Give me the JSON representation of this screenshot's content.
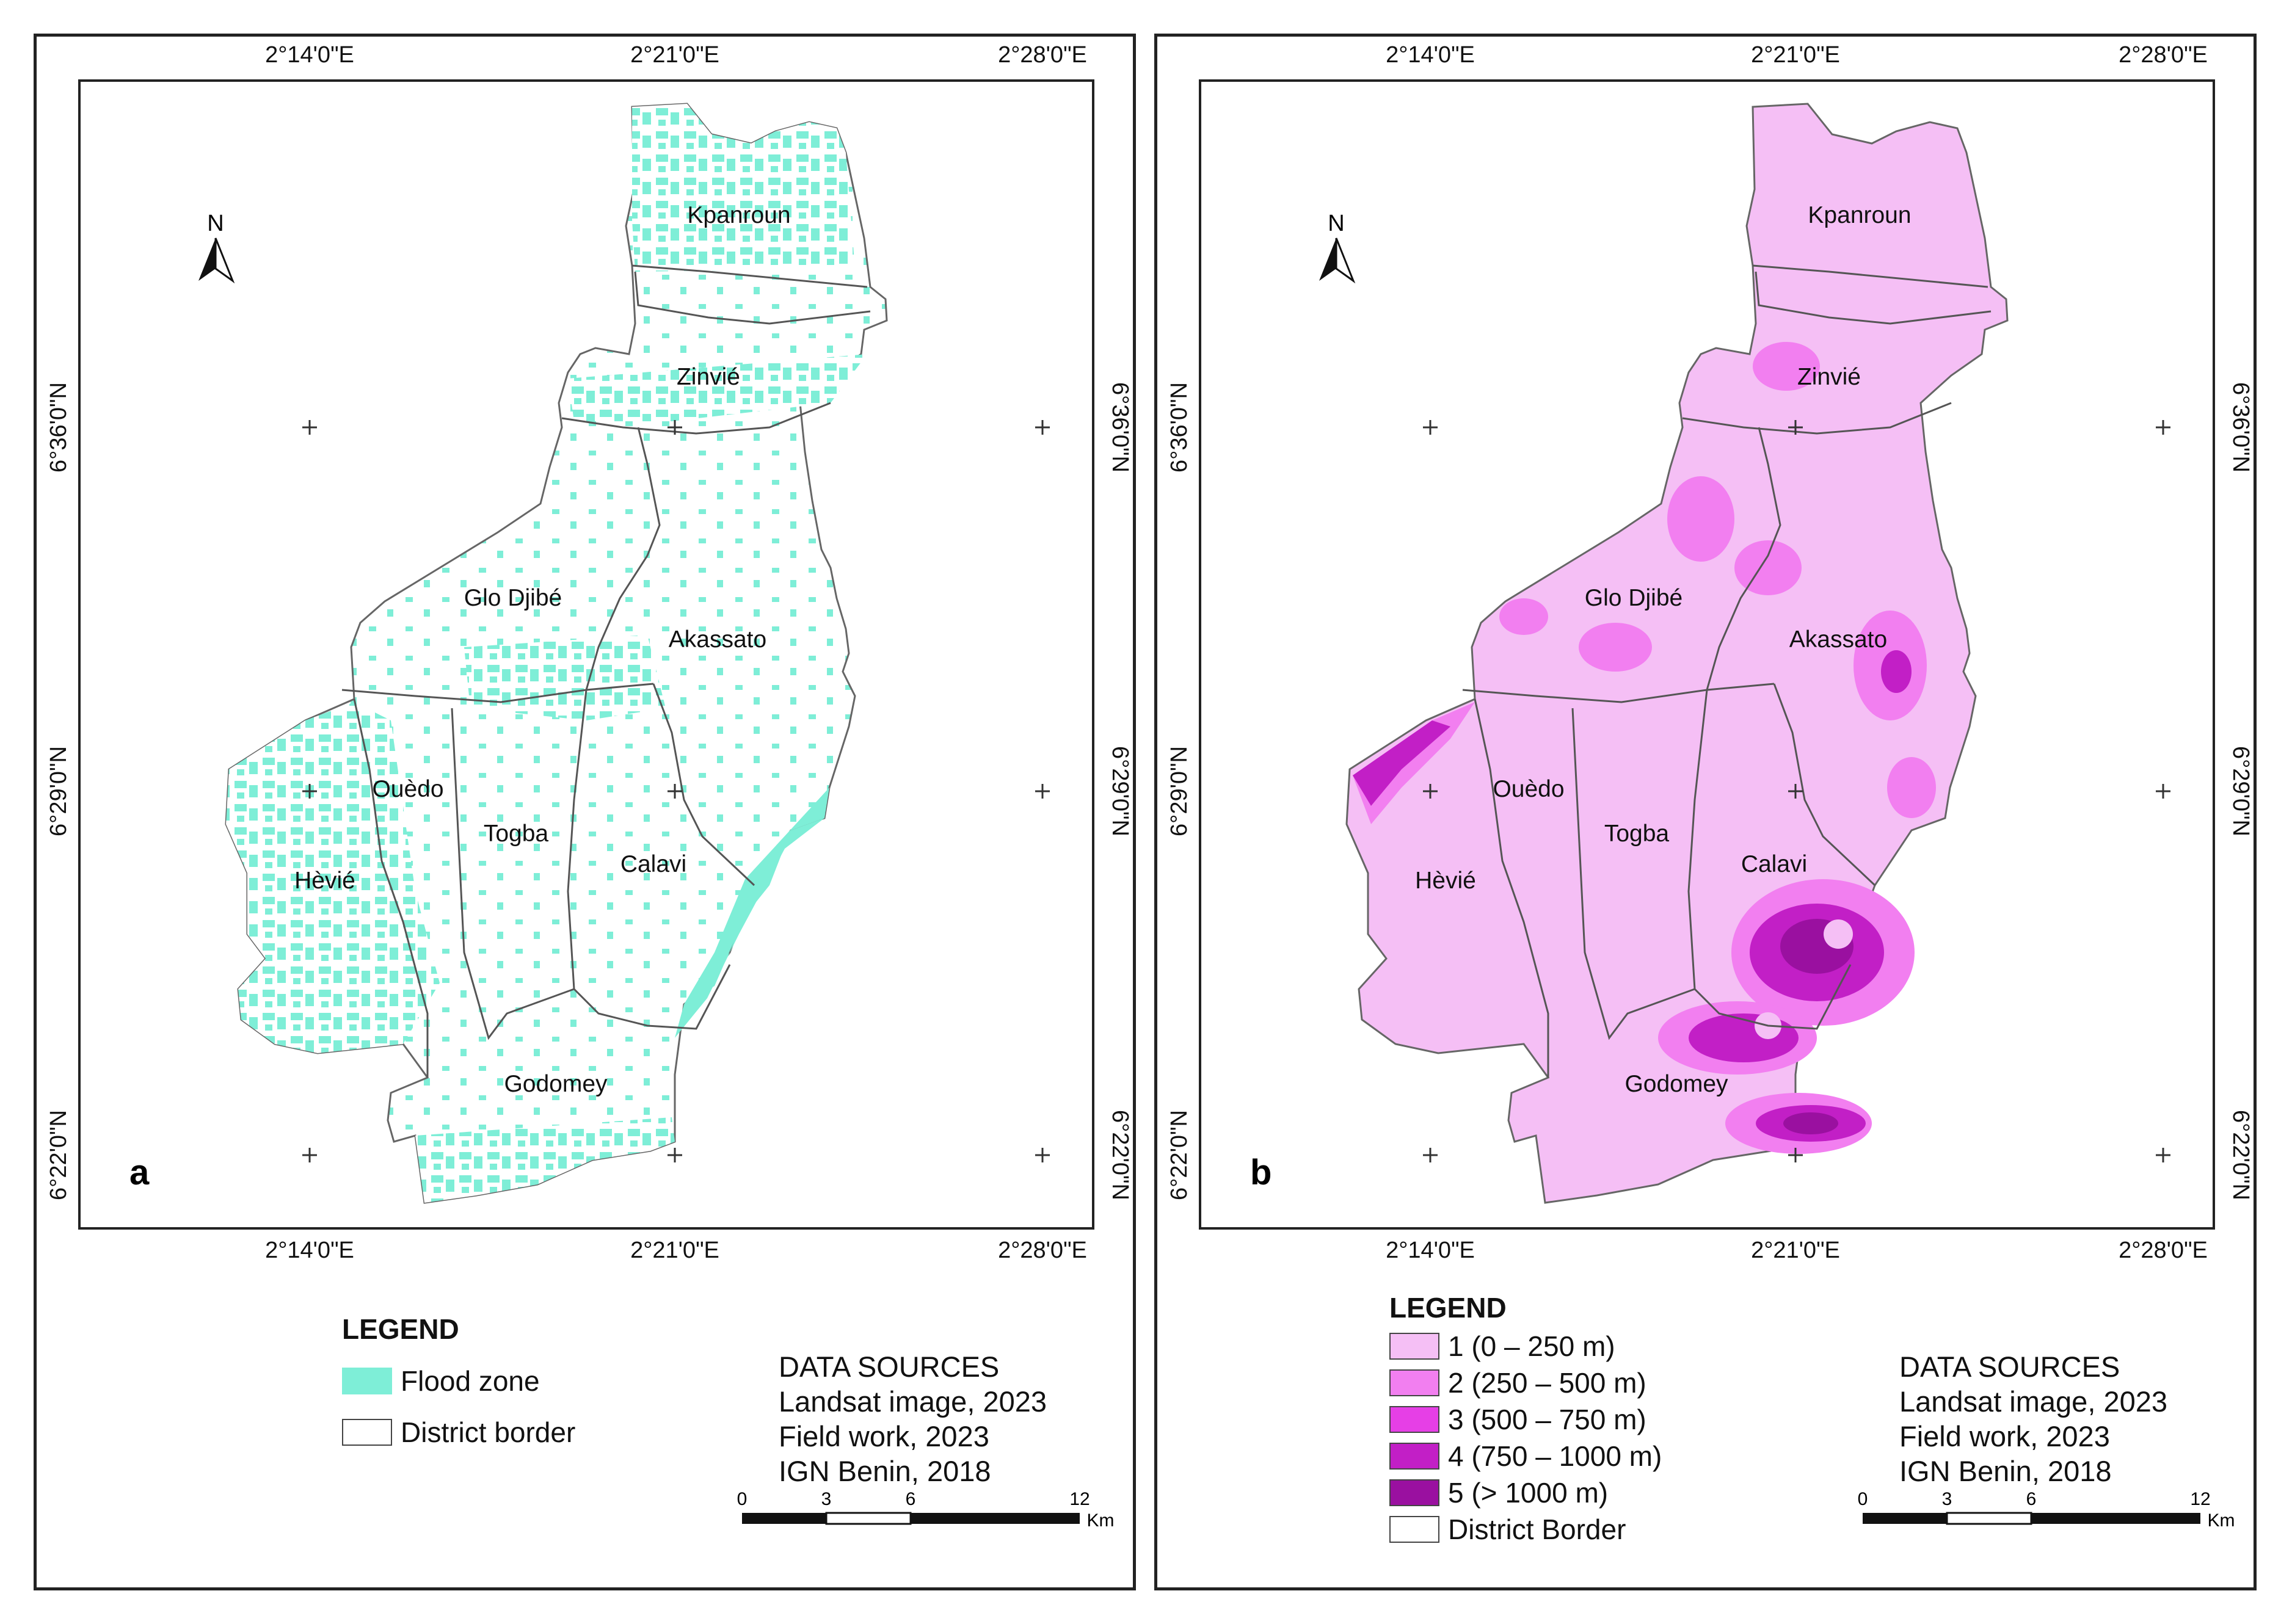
{
  "panels": [
    {
      "letter": "a",
      "top_ticks": [
        "2°14'0\"E",
        "2°21'0\"E",
        "2°28'0\"E"
      ],
      "bottom_ticks": [
        "2°14'0\"E",
        "2°21'0\"E",
        "2°28'0\"E"
      ],
      "left_ticks": [
        "6°36'0\"N",
        "6°29'0\"N",
        "6°22'0\"N"
      ],
      "right_ticks": [
        "6°36'0\"N",
        "6°29'0\"N",
        "6°22'0\"N"
      ],
      "north": "N",
      "districts": [
        "Kpanroun",
        "Zinvié",
        "Glo Djibé",
        "Akassato",
        "Ouèdo",
        "Togba",
        "Hèvié",
        "Calavi",
        "Godomey"
      ],
      "legend": {
        "title": "LEGEND",
        "items": [
          {
            "label": "Flood zone",
            "color": "#7eeed7"
          },
          {
            "label": "District border",
            "color": "#ffffff"
          }
        ]
      },
      "sources": [
        "DATA SOURCES",
        "Landsat image, 2023",
        "Field work, 2023",
        "IGN Benin, 2018"
      ],
      "scale": {
        "ticks": [
          "0",
          "3",
          "6",
          "12"
        ],
        "unit": "Km"
      }
    },
    {
      "letter": "b",
      "top_ticks": [
        "2°14'0\"E",
        "2°21'0\"E",
        "2°28'0\"E"
      ],
      "bottom_ticks": [
        "2°14'0\"E",
        "2°21'0\"E",
        "2°28'0\"E"
      ],
      "left_ticks": [
        "6°36'0\"N",
        "6°29'0\"N",
        "6°22'0\"N"
      ],
      "right_ticks": [
        "6°36'0\"N",
        "6°29'0\"N",
        "6°22'0\"N"
      ],
      "north": "N",
      "districts": [
        "Kpanroun",
        "Zinvié",
        "Glo Djibé",
        "Akassato",
        "Ouèdo",
        "Togba",
        "Hèvié",
        "Calavi",
        "Godomey"
      ],
      "legend": {
        "title": "LEGEND",
        "items": [
          {
            "label": "1 (0 – 250 m)",
            "color": "#f5bff5"
          },
          {
            "label": "2 (250 – 500 m)",
            "color": "#f27ff0"
          },
          {
            "label": "3 (500 – 750 m)",
            "color": "#e63fe6"
          },
          {
            "label": "4 (750 – 1000 m)",
            "color": "#c21fc6"
          },
          {
            "label": "5 (> 1000 m)",
            "color": "#9a10a0"
          },
          {
            "label": "District Border",
            "color": "#ffffff"
          }
        ]
      },
      "sources": [
        "DATA SOURCES",
        "Landsat image, 2023",
        "Field work, 2023",
        "IGN Benin, 2018"
      ],
      "scale": {
        "ticks": [
          "0",
          "3",
          "6",
          "12"
        ],
        "unit": "Km"
      }
    }
  ]
}
